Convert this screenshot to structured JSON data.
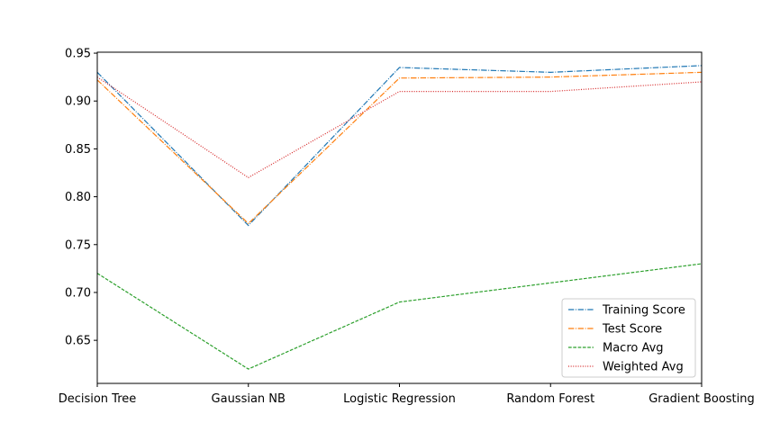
{
  "chart_data": {
    "type": "line",
    "title": "",
    "xlabel": "",
    "ylabel": "",
    "categories": [
      "Decision Tree",
      "Gaussian NB",
      "Logistic Regression",
      "Random Forest",
      "Gradient Boosting"
    ],
    "ylim": [
      0.605,
      0.951
    ],
    "yticks": [
      "0.65",
      "0.70",
      "0.75",
      "0.80",
      "0.85",
      "0.90",
      "0.95"
    ],
    "grid": false,
    "legend_position": "lower-right",
    "series": [
      {
        "name": "Training Score",
        "values": [
          0.93,
          0.77,
          0.935,
          0.93,
          0.937
        ],
        "color": "#1f77b4",
        "dash": "dashdot"
      },
      {
        "name": "Test Score",
        "values": [
          0.922,
          0.772,
          0.924,
          0.925,
          0.93
        ],
        "color": "#ff7f0e",
        "dash": "dashdot"
      },
      {
        "name": "Macro Avg",
        "values": [
          0.72,
          0.62,
          0.69,
          0.71,
          0.73
        ],
        "color": "#2ca02c",
        "dash": "dashed"
      },
      {
        "name": "Weighted Avg",
        "values": [
          0.925,
          0.82,
          0.91,
          0.91,
          0.92
        ],
        "color": "#d62728",
        "dash": "dotted"
      }
    ]
  }
}
